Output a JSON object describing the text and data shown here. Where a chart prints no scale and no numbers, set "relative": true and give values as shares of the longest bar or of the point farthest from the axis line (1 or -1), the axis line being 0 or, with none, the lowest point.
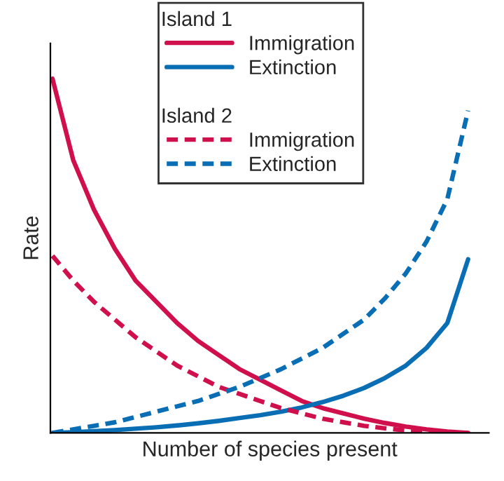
{
  "chart_data": {
    "type": "line",
    "relative": true,
    "xlabel": "Number of species present",
    "ylabel": "Rate",
    "legend": "top",
    "annotations": [
      "Island 1",
      "Island 2"
    ],
    "categories": [
      null,
      null,
      null,
      null,
      null,
      null,
      null,
      null,
      null,
      null,
      null,
      null,
      null,
      null,
      null,
      null,
      null,
      null,
      null,
      null,
      null
    ],
    "series": [
      {
        "name": "Immigration",
        "color": "#d0104c",
        "line_style": "solid",
        "values": [
          1,
          0.77,
          0.63,
          0.52,
          0.43,
          0.37,
          0.31,
          0.26,
          0.22,
          0.18,
          0.15,
          0.12,
          0.09,
          0.07,
          0.055,
          0.04,
          0.028,
          0.018,
          0.01,
          0.004,
          0
        ]
      },
      {
        "name": "Extinction",
        "color": "#0a6eb4",
        "line_style": "solid",
        "values": [
          0,
          0.002,
          0.005,
          0.008,
          0.012,
          0.016,
          0.021,
          0.027,
          0.034,
          0.042,
          0.05,
          0.06,
          0.072,
          0.087,
          0.105,
          0.127,
          0.155,
          0.19,
          0.24,
          0.31,
          0.49
        ]
      },
      {
        "name": "Immigration",
        "color": "#d0104c",
        "line_style": "dashed",
        "values": [
          0.5,
          0.43,
          0.37,
          0.32,
          0.27,
          0.23,
          0.19,
          0.16,
          0.13,
          0.11,
          0.09,
          0.07,
          0.055,
          0.04,
          0.03,
          0.02,
          0.013,
          0.007,
          0.003,
          0,
          0
        ]
      },
      {
        "name": "Extinction",
        "color": "#0a6eb4",
        "line_style": "dashed",
        "values": [
          0,
          0.01,
          0.02,
          0.03,
          0.045,
          0.06,
          0.075,
          0.09,
          0.11,
          0.13,
          0.155,
          0.18,
          0.21,
          0.24,
          0.28,
          0.32,
          0.38,
          0.45,
          0.54,
          0.66,
          0.91
        ]
      }
    ]
  }
}
